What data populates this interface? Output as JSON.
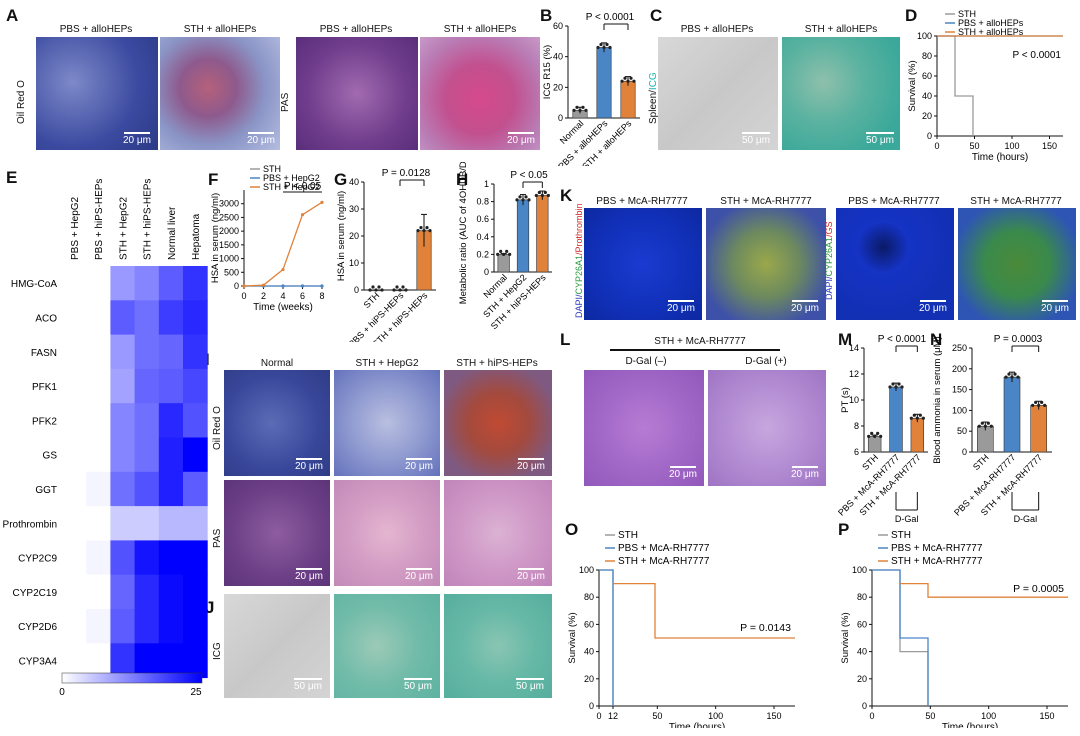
{
  "panels": {
    "A": "A",
    "B": "B",
    "C": "C",
    "D": "D",
    "E": "E",
    "F": "F",
    "G": "G",
    "H": "H",
    "I": "I",
    "J": "J",
    "K": "K",
    "L": "L",
    "M": "M",
    "N": "N",
    "O": "O",
    "P": "P"
  },
  "A": {
    "headers": [
      "PBS + alloHEPs",
      "STH + alloHEPs",
      "PBS + alloHEPs",
      "STH + alloHEPs"
    ],
    "row_oil": "Oil Red O",
    "row_pas": "PAS",
    "scale": [
      "20 μm",
      "20 μm",
      "20 μm"
    ]
  },
  "C": {
    "headers": [
      "PBS + alloHEPs",
      "STH + alloHEPs"
    ],
    "row_label": [
      "Spleen/",
      "ICG"
    ],
    "scale": [
      "50 μm",
      "50 μm"
    ]
  },
  "I": {
    "headers": [
      "Normal",
      "STH + HepG2",
      "STH + hiPS-HEPs"
    ],
    "row_oil": "Oil Red O",
    "row_pas": "PAS",
    "scale": [
      "20 μm",
      "20 μm",
      "20 μm",
      "20 μm",
      "20 μm",
      "20 μm"
    ]
  },
  "J": {
    "row_label": "ICG",
    "scale": [
      "50 μm",
      "50 μm",
      "50 μm"
    ]
  },
  "K": {
    "headers": [
      "PBS + McA-RH7777",
      "STH + McA-RH7777",
      "PBS + McA-RH7777",
      "STH + McA-RH7777"
    ],
    "row_label1": [
      "DAPI/",
      "CYP26A1",
      "/Prothrombin"
    ],
    "row_label2": [
      "DAPI/",
      "CYP26A1",
      "/GS"
    ],
    "scale": [
      "20 μm",
      "20 μm",
      "20 μm",
      "20 μm"
    ]
  },
  "L": {
    "header": "STH + McA-RH7777",
    "sub": [
      "D-Gal (–)",
      "D-Gal (+)"
    ],
    "scale": [
      "20 μm",
      "20 μm"
    ]
  },
  "E": {
    "columns": [
      "PBS + HepG2",
      "PBS + hiPS-HEPs",
      "STH + HepG2",
      "STH + hiPS-HEPs",
      "Normal liver",
      "Hepatoma"
    ],
    "rows": [
      "HMG-CoA",
      "ACO",
      "FASN",
      "PFK1",
      "PFK2",
      "GS",
      "GGT",
      "Prothrombin",
      "CYP2C9",
      "CYP2C19",
      "CYP2D6",
      "CYP3A4"
    ],
    "values": [
      [
        0,
        0,
        10,
        12,
        16,
        20
      ],
      [
        0,
        0,
        16,
        14,
        19,
        21
      ],
      [
        0,
        0,
        10,
        14,
        15,
        20
      ],
      [
        0,
        0,
        9,
        15,
        16,
        18
      ],
      [
        0,
        0,
        12,
        14,
        21,
        17
      ],
      [
        0,
        0,
        12,
        14,
        22,
        25
      ],
      [
        0,
        1,
        14,
        17,
        22,
        16
      ],
      [
        0,
        0,
        5,
        5,
        7,
        7
      ],
      [
        0,
        1,
        17,
        23,
        25,
        25
      ],
      [
        0,
        0,
        15,
        21,
        24,
        25
      ],
      [
        0,
        1,
        16,
        21,
        24,
        25
      ],
      [
        0,
        0,
        20,
        25,
        25,
        25
      ]
    ],
    "colorbar_min": "0",
    "colorbar_max": "25"
  },
  "chart_data": [
    {
      "id": "B",
      "type": "bar",
      "categories": [
        "Normal",
        "PBS + alloHEPs",
        "STH + alloHEPs"
      ],
      "values": [
        5,
        46,
        24
      ],
      "errors": [
        2,
        3,
        3
      ],
      "colors": [
        "#9a9a9a",
        "#4a86c5",
        "#e0823a"
      ],
      "ylabel": "ICG R15 (%)",
      "ylim": [
        0,
        60
      ],
      "yticks": [
        0,
        20,
        40,
        60
      ],
      "annotation": "P < 0.0001"
    },
    {
      "id": "D",
      "type": "line",
      "series": [
        {
          "name": "STH",
          "color": "#9a9a9a",
          "points": [
            [
              0,
              100
            ],
            [
              24,
              100
            ],
            [
              24,
              40
            ],
            [
              48,
              40
            ],
            [
              48,
              0
            ]
          ]
        },
        {
          "name": "PBS + alloHEPs",
          "color": "#4a86c5",
          "points": [
            [
              0,
              100
            ],
            [
              168,
              100
            ]
          ]
        },
        {
          "name": "STH + alloHEPs",
          "color": "#e0823a",
          "points": [
            [
              0,
              100
            ],
            [
              168,
              100
            ]
          ]
        }
      ],
      "xlabel": "Time (hours)",
      "ylabel": "Survival (%)",
      "xlim": [
        0,
        168
      ],
      "ylim": [
        0,
        100
      ],
      "xticks": [
        0,
        50,
        100,
        150
      ],
      "yticks": [
        0,
        20,
        40,
        60,
        80,
        100
      ],
      "annotation": "P < 0.0001"
    },
    {
      "id": "F",
      "type": "line",
      "series": [
        {
          "name": "STH",
          "color": "#9a9a9a",
          "points": [
            [
              0,
              0
            ],
            [
              2,
              0
            ],
            [
              4,
              0
            ],
            [
              6,
              0
            ],
            [
              8,
              0
            ]
          ]
        },
        {
          "name": "PBS + HepG2",
          "color": "#4a86c5",
          "points": [
            [
              0,
              0
            ],
            [
              2,
              0
            ],
            [
              4,
              0
            ],
            [
              6,
              0
            ],
            [
              8,
              0
            ]
          ]
        },
        {
          "name": "STH + HepG2",
          "color": "#e0823a",
          "points": [
            [
              0,
              0
            ],
            [
              2,
              30
            ],
            [
              4,
              600
            ],
            [
              6,
              2600
            ],
            [
              8,
              3050
            ]
          ]
        }
      ],
      "xlabel": "Time (weeks)",
      "ylabel": "HSA in serum (ng/ml)",
      "xlim": [
        0,
        8
      ],
      "ylim": [
        0,
        3500
      ],
      "xticks": [
        0,
        2,
        4,
        6,
        8
      ],
      "yticks": [
        0,
        500,
        1000,
        1500,
        2000,
        2500,
        3000
      ],
      "annotation": "P < 0.05"
    },
    {
      "id": "G",
      "type": "bar",
      "categories": [
        "STH",
        "PBS + hiPS-HEPs",
        "STH + hiPS-HEPs"
      ],
      "values": [
        0,
        0,
        22
      ],
      "errors": [
        0,
        0,
        6
      ],
      "colors": [
        "#9a9a9a",
        "#4a86c5",
        "#e0823a"
      ],
      "ylabel": "HSA in serum (ng/ml)",
      "ylim": [
        0,
        40
      ],
      "yticks": [
        0,
        10,
        20,
        30,
        40
      ],
      "annotation": "P = 0.0128"
    },
    {
      "id": "H",
      "type": "bar",
      "categories": [
        "Normal",
        "STH + HepG2",
        "STH + hiPS-HEPs"
      ],
      "values": [
        0.2,
        0.82,
        0.87
      ],
      "errors": [
        0.01,
        0.06,
        0.05
      ],
      "colors": [
        "#9a9a9a",
        "#4a86c5",
        "#e0823a"
      ],
      "ylabel": "Metabolic ratio (AUC of 4OHDB/DB)",
      "ylim": [
        0,
        1.0
      ],
      "yticks": [
        0.0,
        0.2,
        0.4,
        0.6,
        0.8,
        1.0
      ],
      "annotation": "P < 0.05"
    },
    {
      "id": "M",
      "type": "bar",
      "categories": [
        "STH",
        "PBS + McA-RH7777",
        "STH + McA-RH7777"
      ],
      "values": [
        7.2,
        11,
        8.6
      ],
      "errors": [
        0.1,
        0.3,
        0.3
      ],
      "colors": [
        "#9a9a9a",
        "#4a86c5",
        "#e0823a"
      ],
      "ylabel": "PT (s)",
      "ylim": [
        6,
        14
      ],
      "yticks": [
        6,
        8,
        10,
        12,
        14
      ],
      "annotation": "P < 0.0001",
      "footer": "D-Gal"
    },
    {
      "id": "N",
      "type": "bar",
      "categories": [
        "STH",
        "PBS + McA-RH7777",
        "STH + McA-RH7777"
      ],
      "values": [
        62,
        180,
        112
      ],
      "errors": [
        10,
        12,
        10
      ],
      "colors": [
        "#9a9a9a",
        "#4a86c5",
        "#e0823a"
      ],
      "ylabel": "Blood ammonia in serum (μM)",
      "ylim": [
        0,
        250
      ],
      "yticks": [
        0,
        50,
        100,
        150,
        200,
        250
      ],
      "annotation": "P = 0.0003",
      "footer": "D-Gal"
    },
    {
      "id": "O",
      "type": "line",
      "series": [
        {
          "name": "STH",
          "color": "#9a9a9a",
          "points": [
            [
              0,
              100
            ],
            [
              12,
              100
            ],
            [
              12,
              0
            ]
          ]
        },
        {
          "name": "PBS + McA-RH7777",
          "color": "#4a86c5",
          "points": [
            [
              0,
              100
            ],
            [
              12,
              100
            ],
            [
              12,
              0
            ]
          ]
        },
        {
          "name": "STH + McA-RH7777",
          "color": "#e0823a",
          "points": [
            [
              12,
              90
            ],
            [
              48,
              90
            ],
            [
              48,
              50
            ],
            [
              168,
              50
            ]
          ]
        }
      ],
      "xlabel": "Time (hours)",
      "ylabel": "Survival (%)",
      "xlim": [
        0,
        168
      ],
      "ylim": [
        0,
        100
      ],
      "xticks": [
        0,
        12,
        50,
        100,
        150
      ],
      "yticks": [
        0,
        20,
        40,
        60,
        80,
        100
      ],
      "annotation": "P = 0.0143"
    },
    {
      "id": "P",
      "type": "line",
      "series": [
        {
          "name": "STH",
          "color": "#9a9a9a",
          "points": [
            [
              0,
              100
            ],
            [
              24,
              100
            ],
            [
              24,
              40
            ],
            [
              48,
              40
            ],
            [
              48,
              0
            ]
          ]
        },
        {
          "name": "PBS + McA-RH7777",
          "color": "#4a86c5",
          "points": [
            [
              0,
              100
            ],
            [
              24,
              100
            ],
            [
              24,
              50
            ],
            [
              48,
              50
            ],
            [
              48,
              0
            ]
          ]
        },
        {
          "name": "STH + McA-RH7777",
          "color": "#e0823a",
          "points": [
            [
              24,
              90
            ],
            [
              48,
              90
            ],
            [
              48,
              80
            ],
            [
              168,
              80
            ]
          ]
        }
      ],
      "xlabel": "Time (hours)",
      "ylabel": "Survival (%)",
      "xlim": [
        0,
        168
      ],
      "ylim": [
        0,
        100
      ],
      "xticks": [
        0,
        50,
        100,
        150
      ],
      "yticks": [
        0,
        20,
        40,
        60,
        80,
        100
      ],
      "annotation": "P = 0.0005"
    }
  ]
}
